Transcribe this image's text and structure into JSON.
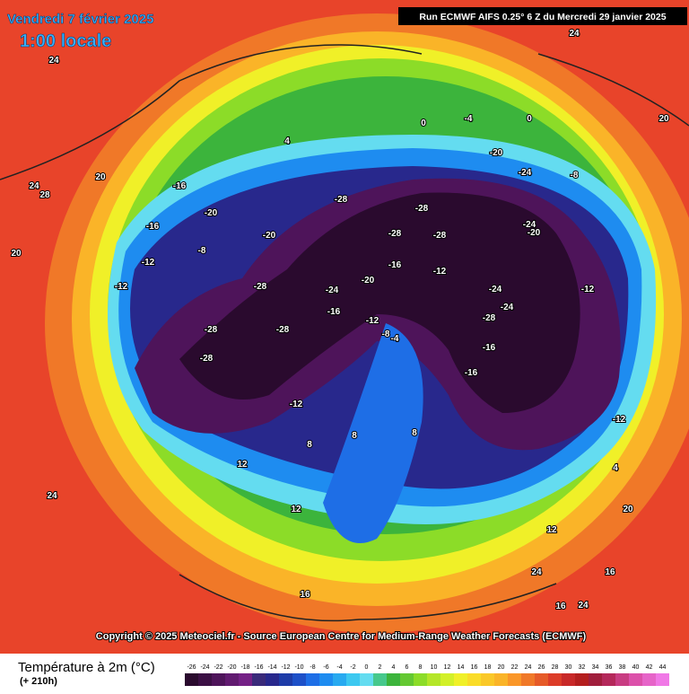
{
  "header": {
    "title": "Vendredi 7 février 2025",
    "subtitle": "1:00 locale",
    "run": "Run ECMWF AIFS 0.25° 6 Z du Mercredi 29 janvier 2025"
  },
  "copyright": "Copyright © 2025 Meteociel.fr - Source European Centre for Medium-Range Weather Forecasts (ECMWF)",
  "legend": {
    "title": "Température à 2m (°C)",
    "lead": "(+ 210h)",
    "ticks": [
      -26,
      -24,
      -22,
      -20,
      -18,
      -16,
      -14,
      -12,
      -10,
      -8,
      -6,
      -4,
      -2,
      0,
      2,
      4,
      6,
      8,
      10,
      12,
      14,
      16,
      18,
      20,
      22,
      24,
      26,
      28,
      30,
      32,
      34,
      36,
      38,
      40,
      42,
      44
    ],
    "colors": [
      "#2a0a2e",
      "#3b0f44",
      "#4e145a",
      "#611a70",
      "#742086",
      "#3a2a7a",
      "#28288c",
      "#1e3ca8",
      "#1e50c8",
      "#1e6ee6",
      "#1e8cf0",
      "#28aaf0",
      "#3cc8f0",
      "#64dcf0",
      "#46c88c",
      "#3cb43c",
      "#64c832",
      "#8cdc28",
      "#b4e628",
      "#d2f028",
      "#f0f028",
      "#fadc28",
      "#fac828",
      "#fab428",
      "#fa9628",
      "#f07828",
      "#e65a28",
      "#dc3c28",
      "#c82828",
      "#b41e1e",
      "#a01e3c",
      "#b4285a",
      "#c83c82",
      "#dc50aa",
      "#e664c8",
      "#f078e6"
    ]
  },
  "map_labels": [
    24,
    24,
    24,
    20,
    24,
    28,
    -28,
    -28,
    -28,
    -28,
    -20,
    -24,
    -24,
    -28,
    -28,
    -24,
    -16,
    -12,
    -12,
    -16,
    -16,
    -20,
    -12,
    -8,
    -12,
    -24,
    -20,
    -28,
    -28,
    -20,
    -16,
    -12,
    -8,
    -4,
    0,
    4,
    8,
    12,
    16,
    20,
    24,
    20,
    16,
    12,
    8,
    -4,
    -8,
    -12,
    -16,
    -20,
    -24,
    -28,
    20,
    24,
    16,
    4,
    0,
    -12,
    -16,
    12,
    8
  ]
}
